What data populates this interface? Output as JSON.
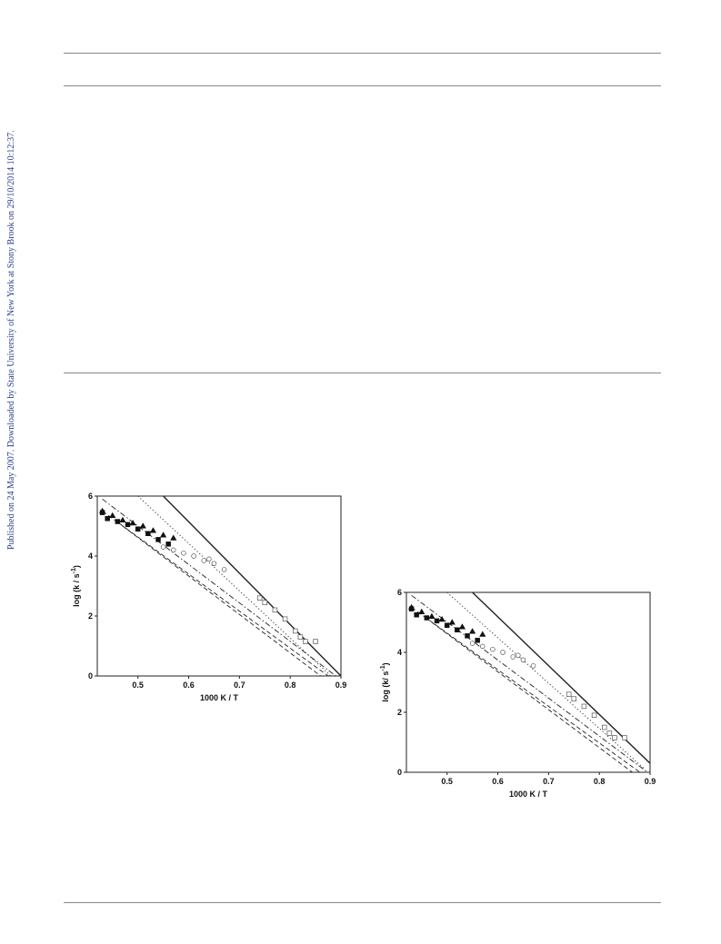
{
  "side_note": "Published on 24 May 2007. Downloaded by State University of New York at Stony Brook on 29/10/2014 10:12:37.",
  "chart_data": [
    {
      "type": "scatter",
      "xlabel": "1000 K / T",
      "ylabel": "log (k / s",
      "ylabel_sup": "-1",
      "ylabel_end": ")",
      "xlim": [
        0.42,
        0.9
      ],
      "ylim": [
        0,
        6
      ],
      "xticks": [
        0.5,
        0.6,
        0.7,
        0.8,
        0.9
      ],
      "yticks": [
        0,
        2,
        4,
        6
      ],
      "series": [
        {
          "style": "solid",
          "x": [
            0.55,
            0.9
          ],
          "values": [
            6,
            0
          ]
        },
        {
          "style": "dotted",
          "x": [
            0.5,
            0.88
          ],
          "values": [
            6,
            0
          ]
        },
        {
          "style": "dashdot",
          "x": [
            0.43,
            0.89
          ],
          "values": [
            5.9,
            0
          ]
        },
        {
          "style": "dashed",
          "x": [
            0.43,
            0.875
          ],
          "values": [
            5.5,
            0
          ]
        },
        {
          "style": "dashed",
          "x": [
            0.47,
            0.86
          ],
          "values": [
            5.0,
            0
          ]
        },
        {
          "marker": "triangle-filled",
          "x": [
            0.43,
            0.45,
            0.47,
            0.49,
            0.51,
            0.53,
            0.55,
            0.57
          ],
          "values": [
            5.5,
            5.35,
            5.2,
            5.1,
            5.0,
            4.85,
            4.7,
            4.6
          ]
        },
        {
          "marker": "square-filled",
          "x": [
            0.43,
            0.44,
            0.46,
            0.48,
            0.5,
            0.52,
            0.54,
            0.56
          ],
          "values": [
            5.45,
            5.25,
            5.15,
            5.05,
            4.9,
            4.75,
            4.55,
            4.4
          ]
        },
        {
          "marker": "circle-open",
          "x": [
            0.55,
            0.57,
            0.59,
            0.61,
            0.63,
            0.64,
            0.65,
            0.67
          ],
          "values": [
            4.3,
            4.2,
            4.1,
            4.0,
            3.85,
            3.9,
            3.75,
            3.55
          ]
        },
        {
          "marker": "square-open",
          "x": [
            0.74,
            0.75,
            0.77,
            0.79,
            0.81,
            0.82,
            0.83,
            0.85
          ],
          "values": [
            2.6,
            2.45,
            2.2,
            1.9,
            1.5,
            1.3,
            1.15,
            1.15
          ]
        }
      ]
    },
    {
      "type": "scatter",
      "xlabel": "1000 K / T",
      "ylabel": "log (k/ s",
      "ylabel_sup": "-1",
      "ylabel_end": ")",
      "xlim": [
        0.42,
        0.9
      ],
      "ylim": [
        0,
        6
      ],
      "xticks": [
        0.5,
        0.6,
        0.7,
        0.8,
        0.9
      ],
      "yticks": [
        0,
        2,
        4,
        6
      ],
      "series": [
        {
          "style": "solid",
          "x": [
            0.55,
            0.9
          ],
          "values": [
            6,
            0.3
          ]
        },
        {
          "style": "dotted",
          "x": [
            0.5,
            0.89
          ],
          "values": [
            6,
            0.1
          ]
        },
        {
          "style": "dashdot",
          "x": [
            0.43,
            0.895
          ],
          "values": [
            5.9,
            0
          ]
        },
        {
          "style": "dashed",
          "x": [
            0.43,
            0.88
          ],
          "values": [
            5.5,
            0
          ]
        },
        {
          "style": "dashed",
          "x": [
            0.47,
            0.865
          ],
          "values": [
            5.0,
            0
          ]
        },
        {
          "marker": "triangle-filled",
          "x": [
            0.43,
            0.45,
            0.47,
            0.49,
            0.51,
            0.53,
            0.55,
            0.57
          ],
          "values": [
            5.5,
            5.35,
            5.2,
            5.1,
            5.0,
            4.85,
            4.7,
            4.6
          ]
        },
        {
          "marker": "square-filled",
          "x": [
            0.43,
            0.44,
            0.46,
            0.48,
            0.5,
            0.52,
            0.54,
            0.56
          ],
          "values": [
            5.45,
            5.25,
            5.15,
            5.05,
            4.9,
            4.75,
            4.55,
            4.4
          ]
        },
        {
          "marker": "circle-open",
          "x": [
            0.55,
            0.57,
            0.59,
            0.61,
            0.63,
            0.64,
            0.65,
            0.67
          ],
          "values": [
            4.3,
            4.2,
            4.1,
            4.0,
            3.85,
            3.9,
            3.75,
            3.55
          ]
        },
        {
          "marker": "square-open",
          "x": [
            0.74,
            0.75,
            0.77,
            0.79,
            0.81,
            0.82,
            0.83,
            0.85
          ],
          "values": [
            2.6,
            2.45,
            2.2,
            1.9,
            1.5,
            1.3,
            1.15,
            1.15
          ]
        }
      ]
    }
  ]
}
